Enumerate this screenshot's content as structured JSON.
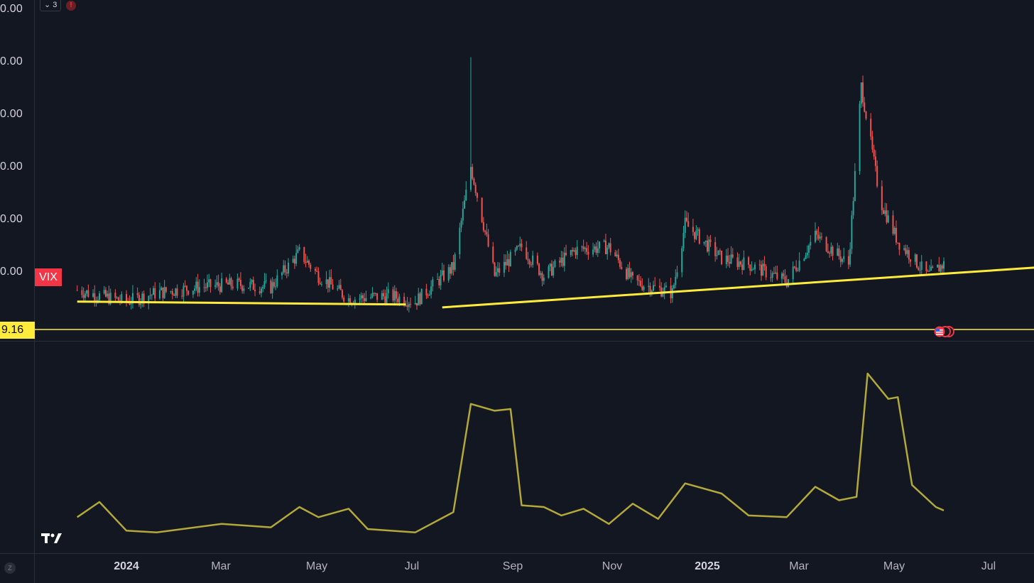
{
  "colors": {
    "background": "#131722",
    "up_candle": "#26a69a",
    "down_candle": "#ef5350",
    "trendline": "#ffeb3b",
    "oscillator": "#b3a93a",
    "vix_label_bg": "#f23645"
  },
  "toolbar": {
    "indicators_count": "3",
    "alert_icon": "exclamation-icon"
  },
  "symbol_label": "VIX",
  "current_price_tag": "9.16",
  "y_axis_labels": [
    "0.00",
    "0.00",
    "0.00",
    "0.00",
    "0.00",
    "0.00"
  ],
  "x_axis_labels": [
    {
      "text": "2024",
      "bold": true
    },
    {
      "text": "Mar",
      "bold": false
    },
    {
      "text": "May",
      "bold": false
    },
    {
      "text": "Jul",
      "bold": false
    },
    {
      "text": "Sep",
      "bold": false
    },
    {
      "text": "Nov",
      "bold": false
    },
    {
      "text": "2025",
      "bold": true
    },
    {
      "text": "Mar",
      "bold": false
    },
    {
      "text": "May",
      "bold": false
    },
    {
      "text": "Jul",
      "bold": false
    }
  ],
  "timezone_button": "Z",
  "chart_data": [
    {
      "type": "candlestick",
      "series_label": "VIX",
      "x_axis": "time (Dec 2023 – Jul 2025)",
      "ylim_relative": [
        0,
        1
      ],
      "candles_up_down_pattern": "volatility index with spike in early Aug 2024 and larger spike in early Apr 2025",
      "close_path": [
        [
          "2023-12-01",
          0.09
        ],
        [
          "2023-12-15",
          0.07
        ],
        [
          "2024-01-01",
          0.05
        ],
        [
          "2024-01-20",
          0.08
        ],
        [
          "2024-02-15",
          0.1
        ],
        [
          "2024-03-10",
          0.11
        ],
        [
          "2024-04-01",
          0.1
        ],
        [
          "2024-04-19",
          0.22
        ],
        [
          "2024-05-01",
          0.14
        ],
        [
          "2024-05-20",
          0.06
        ],
        [
          "2024-06-15",
          0.07
        ],
        [
          "2024-07-01",
          0.05
        ],
        [
          "2024-07-25",
          0.17
        ],
        [
          "2024-08-05",
          0.52
        ],
        [
          "2024-08-20",
          0.14
        ],
        [
          "2024-09-06",
          0.24
        ],
        [
          "2024-09-20",
          0.14
        ],
        [
          "2024-10-10",
          0.23
        ],
        [
          "2024-10-31",
          0.24
        ],
        [
          "2024-11-15",
          0.12
        ],
        [
          "2024-12-10",
          0.08
        ],
        [
          "2024-12-18",
          0.32
        ],
        [
          "2025-01-10",
          0.2
        ],
        [
          "2025-01-27",
          0.18
        ],
        [
          "2025-02-20",
          0.12
        ],
        [
          "2025-03-10",
          0.28
        ],
        [
          "2025-03-31",
          0.18
        ],
        [
          "2025-04-08",
          0.8
        ],
        [
          "2025-04-20",
          0.4
        ],
        [
          "2025-05-01",
          0.26
        ],
        [
          "2025-05-20",
          0.14
        ],
        [
          "2025-05-30",
          0.18
        ]
      ],
      "spike_highs": [
        [
          "2024-08-05",
          0.9
        ],
        [
          "2025-04-08",
          0.8
        ]
      ],
      "trendlines": [
        {
          "from": [
            "2023-12-01",
            0.05
          ],
          "to": [
            "2024-06-25",
            0.04
          ]
        },
        {
          "from": [
            "2024-07-18",
            0.03
          ],
          "to": [
            "2025-07-31",
            0.17
          ]
        },
        {
          "horizontal": true,
          "value": "9.16"
        }
      ]
    },
    {
      "type": "line",
      "series_label": "",
      "x_axis": "time",
      "points": [
        [
          "2023-12-01",
          0.15
        ],
        [
          "2023-12-15",
          0.24
        ],
        [
          "2024-01-01",
          0.07
        ],
        [
          "2024-01-20",
          0.06
        ],
        [
          "2024-03-01",
          0.11
        ],
        [
          "2024-04-01",
          0.09
        ],
        [
          "2024-04-19",
          0.21
        ],
        [
          "2024-05-01",
          0.15
        ],
        [
          "2024-05-20",
          0.2
        ],
        [
          "2024-06-01",
          0.08
        ],
        [
          "2024-07-01",
          0.06
        ],
        [
          "2024-07-25",
          0.18
        ],
        [
          "2024-08-05",
          0.82
        ],
        [
          "2024-08-20",
          0.78
        ],
        [
          "2024-08-30",
          0.79
        ],
        [
          "2024-09-06",
          0.22
        ],
        [
          "2024-09-20",
          0.21
        ],
        [
          "2024-10-01",
          0.16
        ],
        [
          "2024-10-15",
          0.2
        ],
        [
          "2024-10-31",
          0.11
        ],
        [
          "2024-11-15",
          0.23
        ],
        [
          "2024-12-01",
          0.14
        ],
        [
          "2024-12-18",
          0.35
        ],
        [
          "2025-01-10",
          0.29
        ],
        [
          "2025-01-27",
          0.16
        ],
        [
          "2025-02-20",
          0.15
        ],
        [
          "2025-03-10",
          0.33
        ],
        [
          "2025-03-25",
          0.25
        ],
        [
          "2025-04-05",
          0.27
        ],
        [
          "2025-04-12",
          1.0
        ],
        [
          "2025-04-25",
          0.85
        ],
        [
          "2025-05-01",
          0.86
        ],
        [
          "2025-05-10",
          0.34
        ],
        [
          "2025-05-25",
          0.21
        ],
        [
          "2025-05-30",
          0.19
        ]
      ]
    }
  ]
}
